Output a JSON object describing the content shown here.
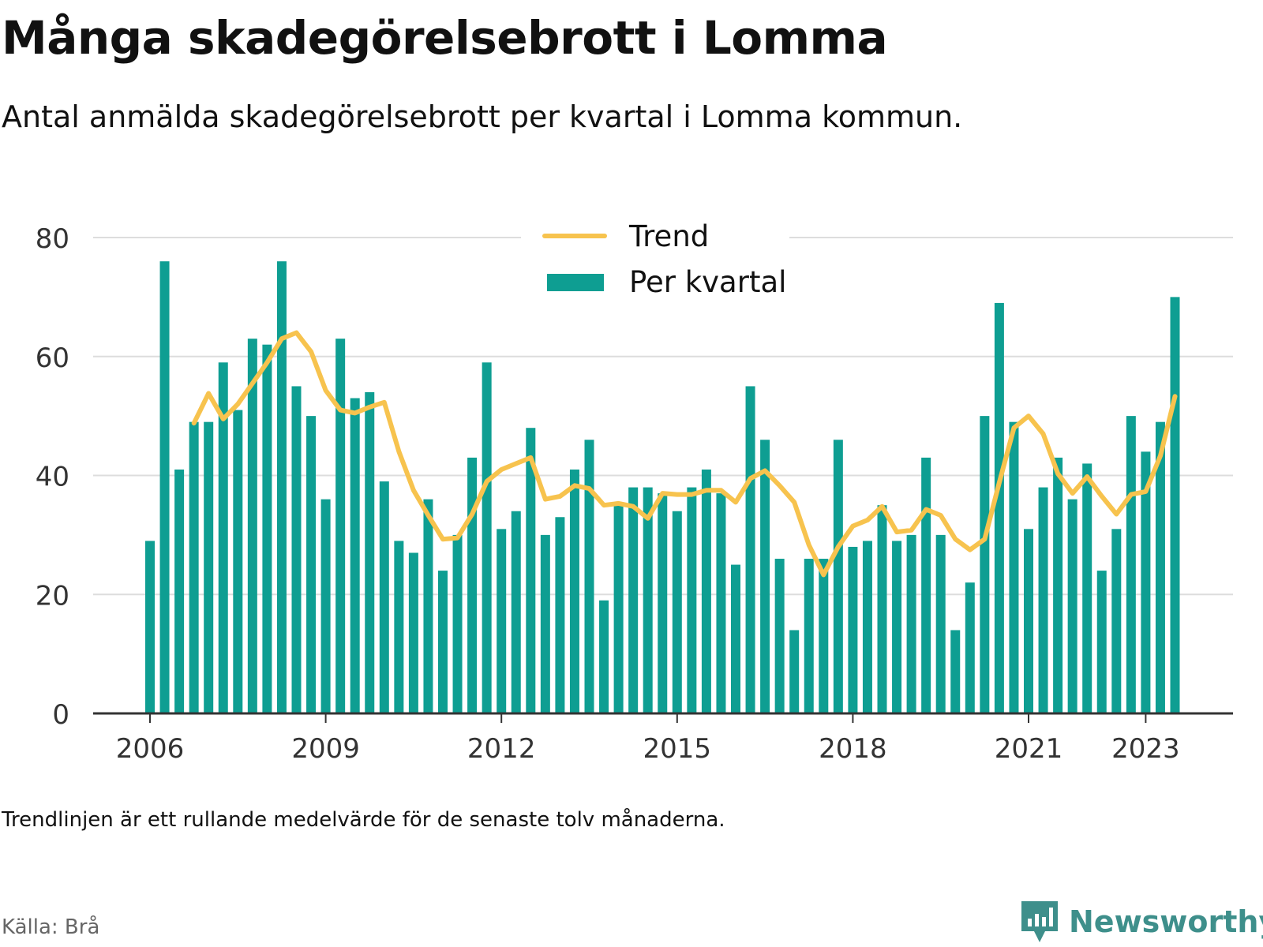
{
  "title": "Många skadegörelsebrott i Lomma",
  "subtitle": "Antal anmälda skadegörelsebrott per kvartal i Lomma kommun.",
  "note": "Trendlinjen är ett rullande medelvärde för de senaste tolv månaderna.",
  "source": "Källa: Brå",
  "brand": "Newsworthy",
  "colors": {
    "bar": "#0e9e92",
    "trend": "#f7c34e",
    "grid": "#dddddd",
    "axis": "#333333",
    "brand": "#3e8f8b"
  },
  "chart_data": {
    "type": "bar",
    "x_tick_labels": [
      "2006",
      "2009",
      "2012",
      "2015",
      "2018",
      "2021",
      "2023"
    ],
    "y_tick_labels": [
      "0",
      "20",
      "40",
      "60",
      "80"
    ],
    "ylim": [
      0,
      80
    ],
    "grid": true,
    "legend_position": "top",
    "first_period": "2006 Q1",
    "series": [
      {
        "name": "Per kvartal",
        "type": "bar",
        "values": [
          29,
          76,
          41,
          49,
          49,
          59,
          51,
          63,
          62,
          76,
          55,
          50,
          36,
          63,
          53,
          54,
          39,
          29,
          27,
          36,
          24,
          30,
          43,
          59,
          31,
          34,
          48,
          30,
          33,
          41,
          46,
          19,
          35,
          38,
          38,
          37,
          34,
          38,
          41,
          37,
          25,
          55,
          46,
          26,
          14,
          26,
          26,
          46,
          28,
          29,
          35,
          29,
          30,
          43,
          30,
          14,
          22,
          50,
          69,
          49,
          31,
          38,
          43,
          36,
          42,
          24,
          31,
          50,
          44,
          49,
          70
        ]
      },
      {
        "name": "Trend",
        "type": "line",
        "start_index": 3,
        "values": [
          48.8,
          53.8,
          49.5,
          52,
          55.5,
          59,
          63,
          64,
          60.8,
          54.3,
          51,
          50.5,
          51.5,
          52.3,
          44,
          37.5,
          33.3,
          29.3,
          29.5,
          33.5,
          39,
          41,
          42,
          43,
          36,
          36.5,
          38.3,
          37.8,
          35,
          35.3,
          34.8,
          32.8,
          37,
          36.8,
          36.8,
          37.5,
          37.5,
          35.5,
          39.5,
          40.8,
          38.3,
          35.5,
          28.3,
          23.3,
          28,
          31.5,
          32.5,
          34.8,
          30.5,
          30.8,
          34.3,
          33.3,
          29.3,
          27.5,
          29.3,
          38.8,
          48,
          50,
          47,
          40.3,
          37,
          39.8,
          36.5,
          33.5,
          36.8,
          37.3,
          43.3,
          53.3
        ]
      }
    ]
  }
}
